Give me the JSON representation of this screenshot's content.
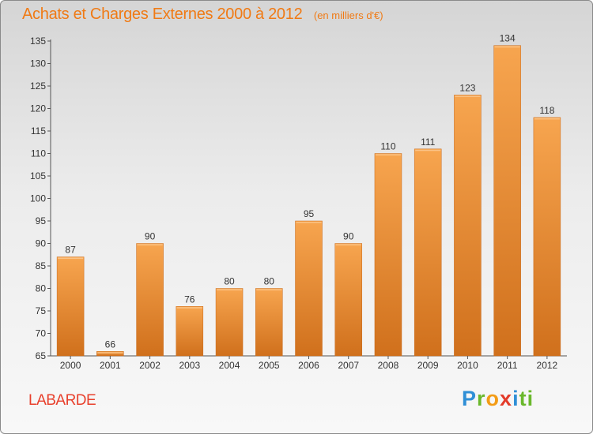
{
  "title": "Achats et Charges Externes 2000 à 2012",
  "unit": "(en milliers d'€)",
  "commune": "LABARDE",
  "logo": [
    "P",
    "r",
    "o",
    "x",
    "i",
    "ti"
  ],
  "colors": {
    "bar_top": "#f7a54f",
    "bar_bottom": "#d0701c",
    "title": "#f07a14",
    "commune": "#e8402c"
  },
  "chart_data": {
    "type": "bar",
    "categories": [
      "2000",
      "2001",
      "2002",
      "2003",
      "2004",
      "2005",
      "2006",
      "2007",
      "2008",
      "2009",
      "2010",
      "2011",
      "2012"
    ],
    "values": [
      87,
      66,
      90,
      76,
      80,
      80,
      95,
      90,
      110,
      111,
      123,
      134,
      118
    ],
    "title": "Achats et Charges Externes 2000 à 2012",
    "xlabel": "",
    "ylabel": "",
    "ylim": [
      65,
      135
    ],
    "yticks": [
      65,
      70,
      75,
      80,
      85,
      90,
      95,
      100,
      105,
      110,
      115,
      120,
      125,
      130,
      135
    ],
    "grid": false,
    "legend": "none"
  }
}
